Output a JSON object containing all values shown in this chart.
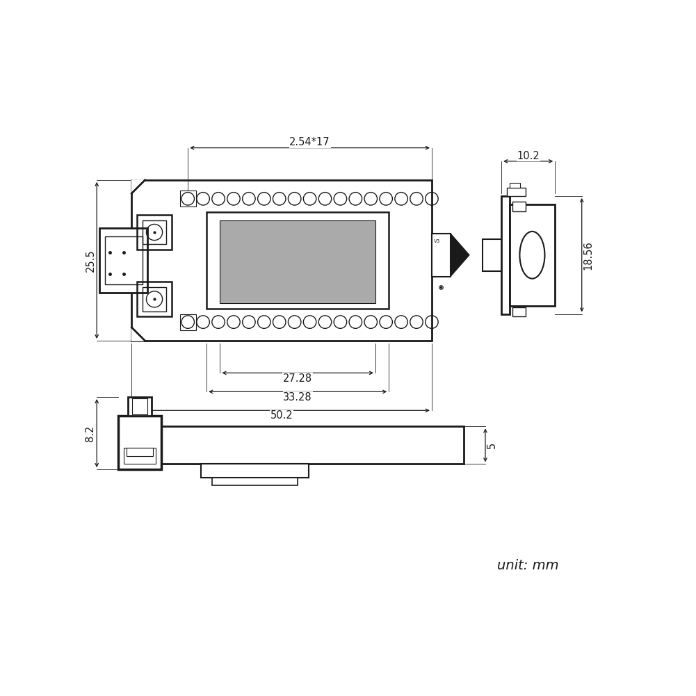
{
  "bg_color": "#ffffff",
  "line_color": "#1a1a1a",
  "gray_fill": "#aaaaaa",
  "font_size_dim": 10.5,
  "unit_text": "unit: mm",
  "dims": {
    "top_width": "2.54*17",
    "height_left": "25.5",
    "bottom_w1": "27.28",
    "bottom_w2": "33.28",
    "bottom_w3": "50.2",
    "side_width": "10.2",
    "side_height": "18.56",
    "bottom_height": "8.2",
    "bottom_thickness": "5"
  }
}
